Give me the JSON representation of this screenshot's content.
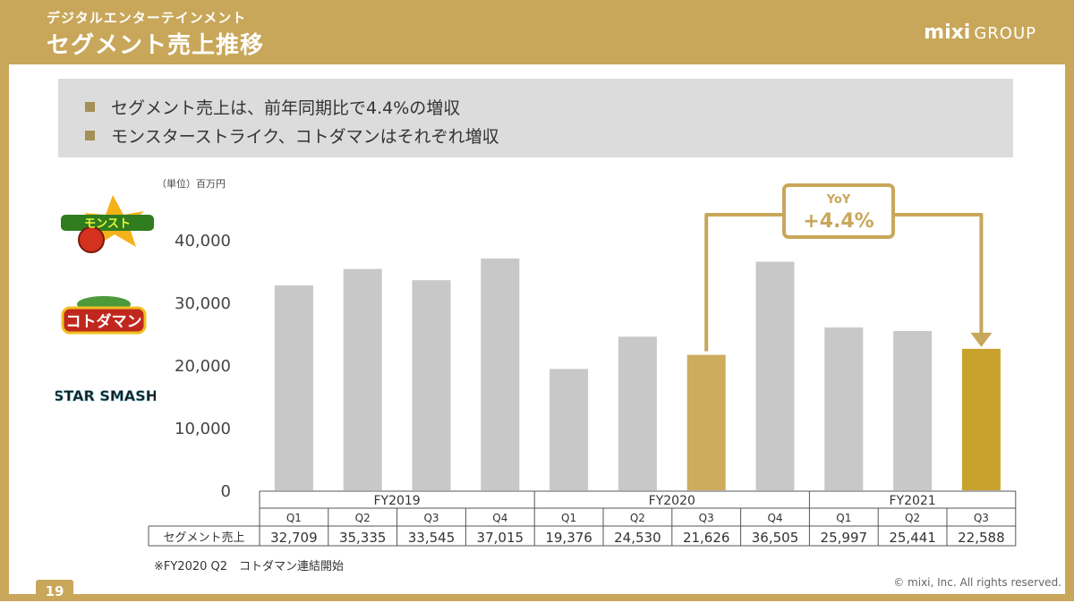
{
  "header": {
    "subtitle": "デジタルエンターテインメント",
    "title": "セグメント売上推移",
    "brand_main": "mixi",
    "brand_group": "GROUP"
  },
  "summary": {
    "bullets": [
      "セグメント売上は、前年同期比で4.4%の増収",
      "モンスターストライク、コトダマンはそれぞれ増収"
    ]
  },
  "logos": {
    "monster_strike": "モンスト",
    "kotodaman": "コトダマン",
    "star_smash": "STAR SMASH"
  },
  "chart_data": {
    "type": "bar",
    "unit_label": "（単位）百万円",
    "ylim": [
      0,
      40000
    ],
    "yticks": [
      "0",
      "10,000",
      "20,000",
      "30,000",
      "40,000"
    ],
    "ytick_values": [
      0,
      10000,
      20000,
      30000,
      40000
    ],
    "fiscal_years": [
      {
        "label": "FY2019",
        "quarters": [
          "Q1",
          "Q2",
          "Q3",
          "Q4"
        ]
      },
      {
        "label": "FY2020",
        "quarters": [
          "Q1",
          "Q2",
          "Q3",
          "Q4"
        ]
      },
      {
        "label": "FY2021",
        "quarters": [
          "Q1",
          "Q2",
          "Q3"
        ]
      }
    ],
    "categories": [
      "FY2019 Q1",
      "FY2019 Q2",
      "FY2019 Q3",
      "FY2019 Q4",
      "FY2020 Q1",
      "FY2020 Q2",
      "FY2020 Q3",
      "FY2020 Q4",
      "FY2021 Q1",
      "FY2021 Q2",
      "FY2021 Q3"
    ],
    "series": [
      {
        "name": "セグメント売上",
        "values": [
          32709,
          35335,
          33545,
          37015,
          19376,
          24530,
          21626,
          36505,
          25997,
          25441,
          22588
        ],
        "display": [
          "32,709",
          "35,335",
          "33,545",
          "37,015",
          "19,376",
          "24,530",
          "21,626",
          "36,505",
          "25,997",
          "25,441",
          "22,588"
        ]
      }
    ],
    "bar_colors": [
      "#c8c8c8",
      "#c8c8c8",
      "#c8c8c8",
      "#c8c8c8",
      "#c8c8c8",
      "#c8c8c8",
      "#cdad5c",
      "#c8c8c8",
      "#c8c8c8",
      "#c8c8c8",
      "#c9a22e"
    ],
    "annotation": {
      "label": "YoY",
      "value": "+4.4%"
    },
    "grid": false
  },
  "footnote": "※FY2020 Q2　コトダマン連結開始",
  "footer": {
    "page_number": "19",
    "copyright": "© mixi, Inc. All rights reserved."
  },
  "colors": {
    "accent": "#c8a75a",
    "bar_default": "#c8c8c8",
    "bar_highlight_prev": "#cdad5c",
    "bar_highlight_curr": "#c9a22e",
    "bullet": "#a58f58"
  }
}
